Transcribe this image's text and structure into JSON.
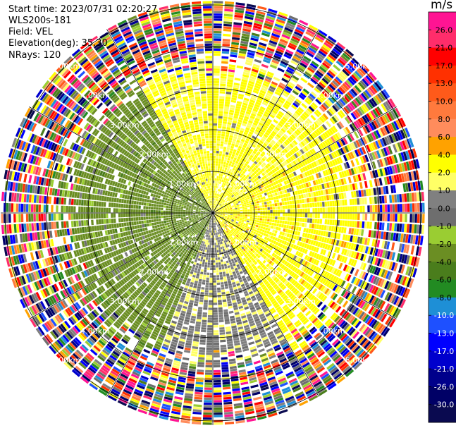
{
  "header": {
    "start_time": "Start time: 2023/07/31 02:20:27",
    "instrument": "WLS200s-181",
    "field": "Field: VEL",
    "elevation": "Elevation(deg): 35.30",
    "nrays": "NRays: 120"
  },
  "chart_data": {
    "type": "heatmap",
    "projection": "polar-ppi",
    "field": "VEL",
    "units": "m/s",
    "nrays": 120,
    "elevation_deg": 35.3,
    "range_rings_km": [
      1.0,
      2.0,
      3.0,
      4.0,
      5.0
    ],
    "range_ring_labels": [
      "1.00km",
      "2.00km",
      "3.00km",
      "4.00km",
      "5.00km"
    ],
    "max_range_km": 5.1,
    "azimuth_lines_deg": [
      0,
      30,
      60,
      90,
      120,
      150,
      180,
      210,
      240,
      270,
      300,
      330
    ],
    "colorbar": {
      "title": "m/s",
      "ticks": [
        "26.0",
        "21.0",
        "17.0",
        "13.0",
        "10.0",
        "8.0",
        "6.0",
        "4.0",
        "2.0",
        "1.0",
        "0.0",
        "-1.0",
        "-2.0",
        "-4.0",
        "-6.0",
        "-8.0",
        "-10.0",
        "-13.0",
        "-17.0",
        "-21.0",
        "-26.0",
        "-30.0"
      ],
      "bins_top_to_bottom": [
        {
          "range": "> 26.0",
          "color": "#ff1493"
        },
        {
          "range": "21.0 – 26.0",
          "color": "#ff2d6b"
        },
        {
          "range": "17.0 – 21.0",
          "color": "#ff0000"
        },
        {
          "range": "13.0 – 17.0",
          "color": "#ff3000"
        },
        {
          "range": "10.0 – 13.0",
          "color": "#ff5a1a"
        },
        {
          "range": "8.0 – 10.0",
          "color": "#ff7a3d"
        },
        {
          "range": "6.0 – 8.0",
          "color": "#ff8c5c"
        },
        {
          "range": "4.0 – 6.0",
          "color": "#ffa200"
        },
        {
          "range": "2.0 – 4.0",
          "color": "#ffff00"
        },
        {
          "range": "1.0 – 2.0",
          "color": "#ffff66"
        },
        {
          "range": "0.0 – 1.0",
          "color": "#808080"
        },
        {
          "range": "-1.0 – 0.0",
          "color": "#6e6e6e"
        },
        {
          "range": "-2.0 – -1.0",
          "color": "#9acd32"
        },
        {
          "range": "-4.0 – -2.0",
          "color": "#6b8e23"
        },
        {
          "range": "-6.0 – -4.0",
          "color": "#4a7d1c"
        },
        {
          "range": "-8.0 – -6.0",
          "color": "#228b22"
        },
        {
          "range": "-10.0 – -8.0",
          "color": "#1e8fd6"
        },
        {
          "range": "-13.0 – -10.0",
          "color": "#1e50ff"
        },
        {
          "range": "-17.0 – -13.0",
          "color": "#0000ff"
        },
        {
          "range": "-21.0 – -17.0",
          "color": "#0000cd"
        },
        {
          "range": "-26.0 – -21.0",
          "color": "#00008b"
        },
        {
          "range": "-30.0 – -26.0",
          "color": "#000066"
        },
        {
          "range": "< -30.0",
          "color": "#0a0a50"
        }
      ]
    },
    "coherent_region_km": 3.6,
    "sectors": [
      {
        "azimuth_deg_from": 330,
        "azimuth_deg_to": 60,
        "dominant_velocity_ms": 2.5
      },
      {
        "azimuth_deg_from": 60,
        "azimuth_deg_to": 150,
        "dominant_velocity_ms": 3.0
      },
      {
        "azimuth_deg_from": 150,
        "azimuth_deg_to": 200,
        "dominant_velocity_ms": 0.5
      },
      {
        "azimuth_deg_from": 200,
        "azimuth_deg_to": 330,
        "dominant_velocity_ms": -3.0
      }
    ],
    "outer_region": "noisy, all velocity bins"
  }
}
